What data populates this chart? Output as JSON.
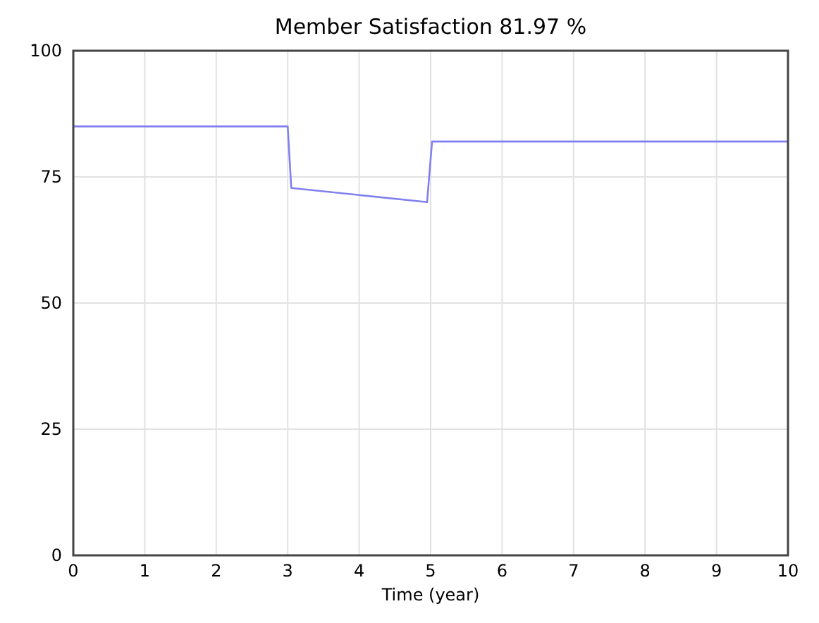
{
  "chart_data": {
    "type": "line",
    "title": "Member Satisfaction 81.97 %",
    "xlabel": "Time (year)",
    "series": [
      {
        "color": "#8080f0",
        "x": [
          0,
          3,
          3.05,
          4.95,
          5.02,
          10
        ],
        "values": [
          85,
          85,
          72.8,
          70,
          82,
          82
        ]
      }
    ],
    "xlim": [
      0,
      10
    ],
    "xticks": [
      0,
      1,
      2,
      3,
      4,
      5,
      6,
      7,
      8,
      9,
      10
    ],
    "ylim": [
      0,
      100
    ],
    "yticks": [
      0,
      25,
      50,
      75,
      100
    ],
    "grid": true,
    "line_style": "solid"
  }
}
